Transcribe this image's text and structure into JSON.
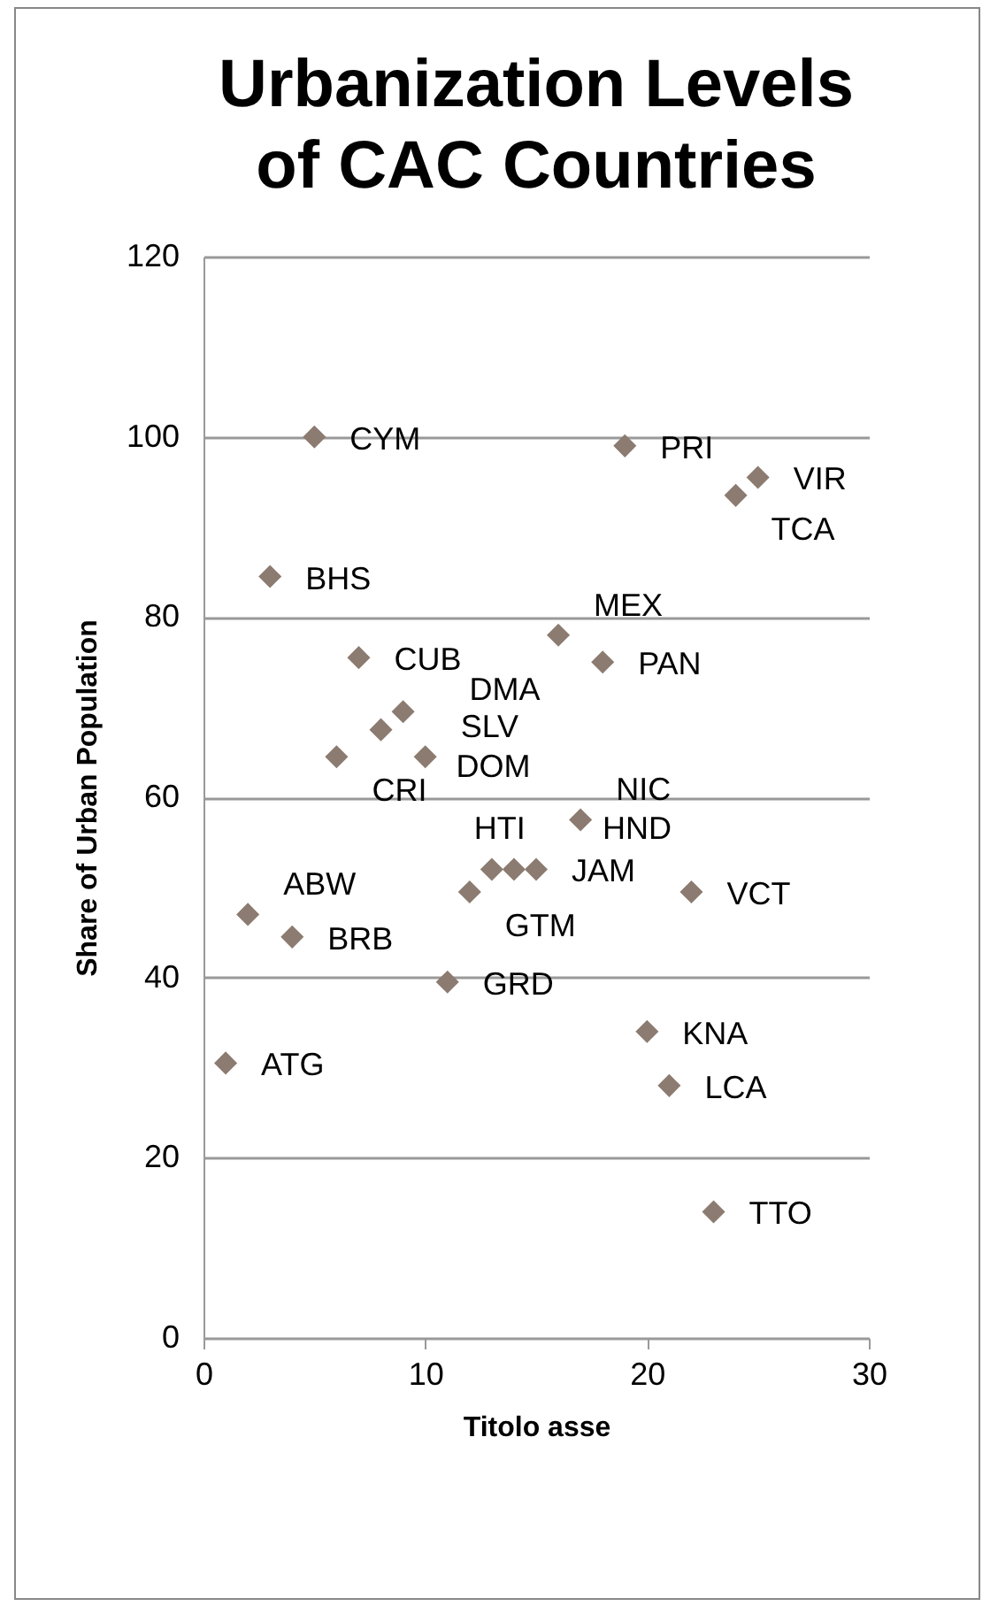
{
  "chart_data": {
    "type": "scatter",
    "title": "Urbanization Levels of CAC Countries",
    "xlabel": "Titolo asse",
    "ylabel": "Share of Urban Population",
    "x": [
      1,
      2,
      3,
      4,
      5,
      6,
      7,
      8,
      9,
      10,
      11,
      12,
      13,
      14,
      15,
      16,
      17,
      18,
      19,
      20,
      21,
      22,
      23,
      24,
      25
    ],
    "series": [
      {
        "color": "#8c7b70",
        "values": [
          30.5,
          47,
          84.5,
          44.5,
          100,
          64.5,
          75.5,
          67.5,
          69.5,
          64.5,
          39.5,
          49.5,
          52,
          52,
          52,
          78,
          57.5,
          75,
          99,
          34,
          28,
          49.5,
          14,
          93.5,
          95.5
        ]
      }
    ],
    "annotations": [
      {
        "text": "ATG",
        "x": 1,
        "y": 30.5
      },
      {
        "text": "ABW",
        "x": 2,
        "y": 47
      },
      {
        "text": "BHS",
        "x": 3,
        "y": 84.5
      },
      {
        "text": "BRB",
        "x": 4,
        "y": 44.5
      },
      {
        "text": "CYM",
        "x": 5,
        "y": 100
      },
      {
        "text": "CRI",
        "x": 6,
        "y": 64.5
      },
      {
        "text": "CUB",
        "x": 7,
        "y": 75.5
      },
      {
        "text": "DMA",
        "x": 8,
        "y": 67.5
      },
      {
        "text": "DOM",
        "x": 9,
        "y": 69.5
      },
      {
        "text": "SLV",
        "x": 10,
        "y": 64.5
      },
      {
        "text": "GRD",
        "x": 11,
        "y": 39.5
      },
      {
        "text": "GTM",
        "x": 12,
        "y": 49.5
      },
      {
        "text": "HTI",
        "x": 13,
        "y": 52
      },
      {
        "text": "HND",
        "x": 14,
        "y": 52
      },
      {
        "text": "JAM",
        "x": 15,
        "y": 52
      },
      {
        "text": "MEX",
        "x": 16,
        "y": 78
      },
      {
        "text": "NIC",
        "x": 17,
        "y": 57.5
      },
      {
        "text": "PAN",
        "x": 18,
        "y": 75
      },
      {
        "text": "PRI",
        "x": 19,
        "y": 99
      },
      {
        "text": "KNA",
        "x": 20,
        "y": 34
      },
      {
        "text": "LCA",
        "x": 21,
        "y": 28
      },
      {
        "text": "VCT",
        "x": 22,
        "y": 49.5
      },
      {
        "text": "TTO",
        "x": 23,
        "y": 14
      },
      {
        "text": "TCA",
        "x": 24,
        "y": 93.5
      },
      {
        "text": "VIR",
        "x": 25,
        "y": 95.5
      }
    ],
    "xlim": [
      0,
      30
    ],
    "xticks": [
      0,
      10,
      20,
      30
    ],
    "ylim": [
      0,
      120
    ],
    "yticks": [
      0,
      20,
      40,
      60,
      80,
      100,
      120
    ],
    "grid": "y",
    "marker": "diamond",
    "legend": false
  }
}
